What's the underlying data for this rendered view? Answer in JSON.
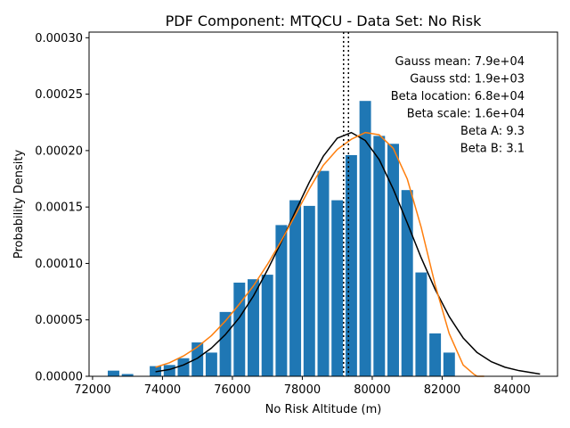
{
  "chart_data": {
    "type": "bar",
    "title": "PDF Component: MTQCU - Data Set: No Risk",
    "xlabel": "No Risk Altitude (m)",
    "ylabel": "Probability Density",
    "xlim": [
      71900,
      85300
    ],
    "ylim": [
      0,
      0.000305
    ],
    "xticks": [
      72000,
      74000,
      76000,
      78000,
      80000,
      82000,
      84000
    ],
    "xtick_labels": [
      "72000",
      "74000",
      "76000",
      "78000",
      "80000",
      "82000",
      "84000"
    ],
    "yticks": [
      0,
      5e-05,
      0.0001,
      0.00015,
      0.0002,
      0.00025,
      0.0003
    ],
    "ytick_labels": [
      "0.00000",
      "0.00005",
      "0.00010",
      "0.00015",
      "0.00020",
      "0.00025",
      "0.00030"
    ],
    "bar_width": 330,
    "bars": {
      "x": [
        72600,
        73000,
        73800,
        74200,
        74600,
        75000,
        75400,
        75800,
        76200,
        76600,
        77000,
        77400,
        77800,
        78200,
        78600,
        79000,
        79400,
        79800,
        80200,
        80600,
        81000,
        81400,
        81800,
        82200,
        82600
      ],
      "y": [
        5e-06,
        2e-06,
        9e-06,
        1e-05,
        1.6e-05,
        3e-05,
        2.1e-05,
        5.7e-05,
        8.3e-05,
        8.6e-05,
        9e-05,
        0.000134,
        0.000156,
        0.000151,
        0.000182,
        0.000156,
        0.000196,
        0.000244,
        0.000213,
        0.000206,
        0.000165,
        9.2e-05,
        3.8e-05,
        2.1e-05,
        0.0
      ]
    },
    "series": [
      {
        "kind": "gauss",
        "color": "#000000",
        "x": [
          73800,
          74200,
          74600,
          75000,
          75400,
          75800,
          76200,
          76600,
          77000,
          77400,
          77800,
          78200,
          78600,
          79000,
          79400,
          79800,
          80200,
          80600,
          81000,
          81400,
          81800,
          82200,
          82600,
          83000,
          83400,
          83800,
          84200,
          84800
        ],
        "y": [
          4e-06,
          6e-06,
          1e-05,
          1.6e-05,
          2.5e-05,
          3.7e-05,
          5.2e-05,
          7.1e-05,
          9.4e-05,
          0.000119,
          0.000146,
          0.000172,
          0.000195,
          0.000211,
          0.000216,
          0.000209,
          0.000192,
          0.000166,
          0.000136,
          0.000105,
          7.7e-05,
          5.3e-05,
          3.4e-05,
          2.1e-05,
          1.3e-05,
          8e-06,
          5e-06,
          2e-06
        ]
      },
      {
        "kind": "beta",
        "color": "#ff7f0e",
        "x": [
          73800,
          74200,
          74600,
          75000,
          75400,
          75800,
          76200,
          76600,
          77000,
          77400,
          77800,
          78200,
          78600,
          79000,
          79400,
          79800,
          80200,
          80600,
          81000,
          81400,
          81800,
          82200,
          82600,
          82900,
          83000,
          83200
        ],
        "y": [
          8e-06,
          1.2e-05,
          1.8e-05,
          2.6e-05,
          3.6e-05,
          4.9e-05,
          6.4e-05,
          8e-05,
          9.9e-05,
          0.00012,
          0.000143,
          0.000166,
          0.000187,
          0.000201,
          0.00021,
          0.000216,
          0.000214,
          0.000202,
          0.000175,
          0.000132,
          8.1e-05,
          3.8e-05,
          1e-05,
          2e-06,
          0.0,
          0.0
        ]
      }
    ],
    "vlines": [
      79180,
      79320
    ],
    "annotations": [
      "Gauss mean: 7.9e+04",
      "Gauss std: 1.9e+03",
      "Beta location: 6.8e+04",
      "Beta scale: 1.6e+04",
      "Beta A: 9.3",
      "Beta B: 3.1"
    ],
    "bar_color": "#1f77b4",
    "grid": false,
    "legend": "none"
  }
}
